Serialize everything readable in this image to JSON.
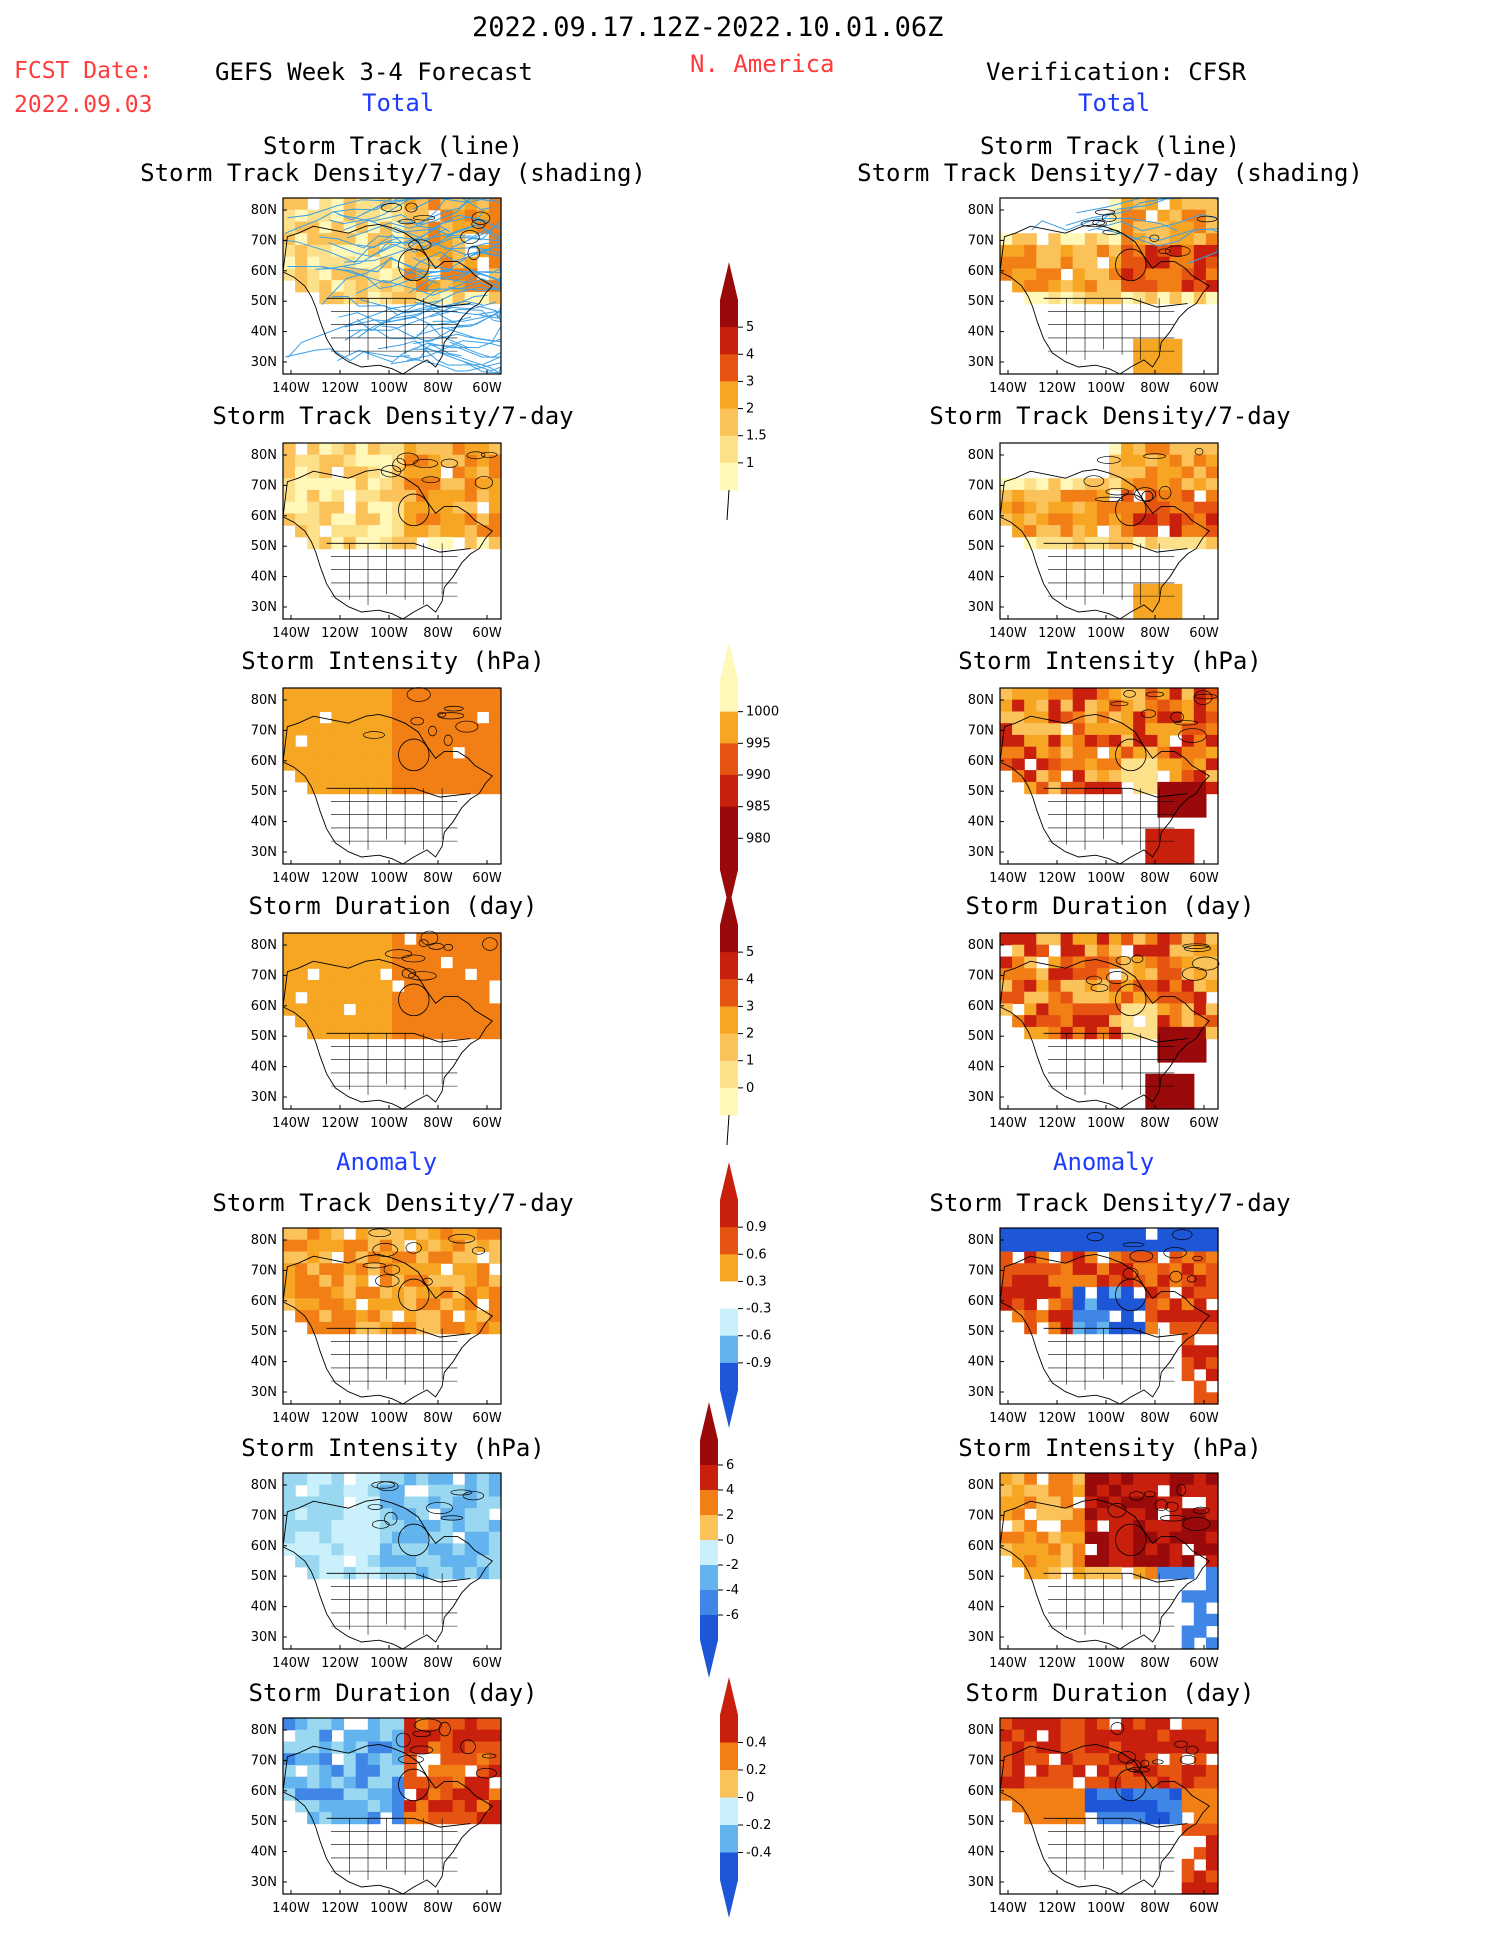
{
  "header": {
    "date_range": "2022.09.17.12Z-2022.10.01.06Z",
    "fcst_label": "FCST Date:",
    "fcst_date": "2022.09.03",
    "left_title": "GEFS Week 3-4 Forecast",
    "region": "N. America",
    "right_title": "Verification: CFSR",
    "total_label_left": "Total",
    "total_label_right": "Total",
    "anomaly_label_left": "Anomaly",
    "anomaly_label_right": "Anomaly"
  },
  "panels": {
    "track_line_title1": "Storm Track (line)",
    "track_line_title2": "Storm Track Density/7-day (shading)",
    "density_title": "Storm Track Density/7-day",
    "intensity_title": "Storm Intensity (hPa)",
    "duration_title": "Storm Duration (day)"
  },
  "map_axes": {
    "lat_labels": [
      "80N",
      "70N",
      "60N",
      "50N",
      "40N",
      "30N"
    ],
    "lon_labels": [
      "140W",
      "120W",
      "100W",
      "80W",
      "60W"
    ]
  },
  "colorbars": {
    "total_density": [
      "5",
      "4",
      "3",
      "2",
      "1.5",
      "1"
    ],
    "total_intensity": [
      "1000",
      "995",
      "990",
      "985",
      "980"
    ],
    "total_duration": [
      "5",
      "4",
      "3",
      "2",
      "1",
      "0"
    ],
    "anom_density": [
      "0.9",
      "0.6",
      "0.3",
      "-0.3",
      "-0.6",
      "-0.9"
    ],
    "anom_intensity": [
      "6",
      "4",
      "2",
      "0",
      "-2",
      "-4",
      "-6"
    ],
    "anom_duration": [
      "0.4",
      "0.2",
      "0",
      "-0.2",
      "-0.4"
    ]
  },
  "colors": {
    "warm": [
      "#fff8b8",
      "#fde08a",
      "#fbc25a",
      "#f6a623",
      "#f27f15",
      "#e65412",
      "#c8200c",
      "#9a0a0a"
    ],
    "cool": [
      "#c9f0fb",
      "#9ad8f2",
      "#63b4ee",
      "#3f86e6",
      "#1e56d8"
    ],
    "track_line": "#3aa0e8",
    "header_red": "#ff3b3b",
    "header_blue": "#1e3cff"
  }
}
